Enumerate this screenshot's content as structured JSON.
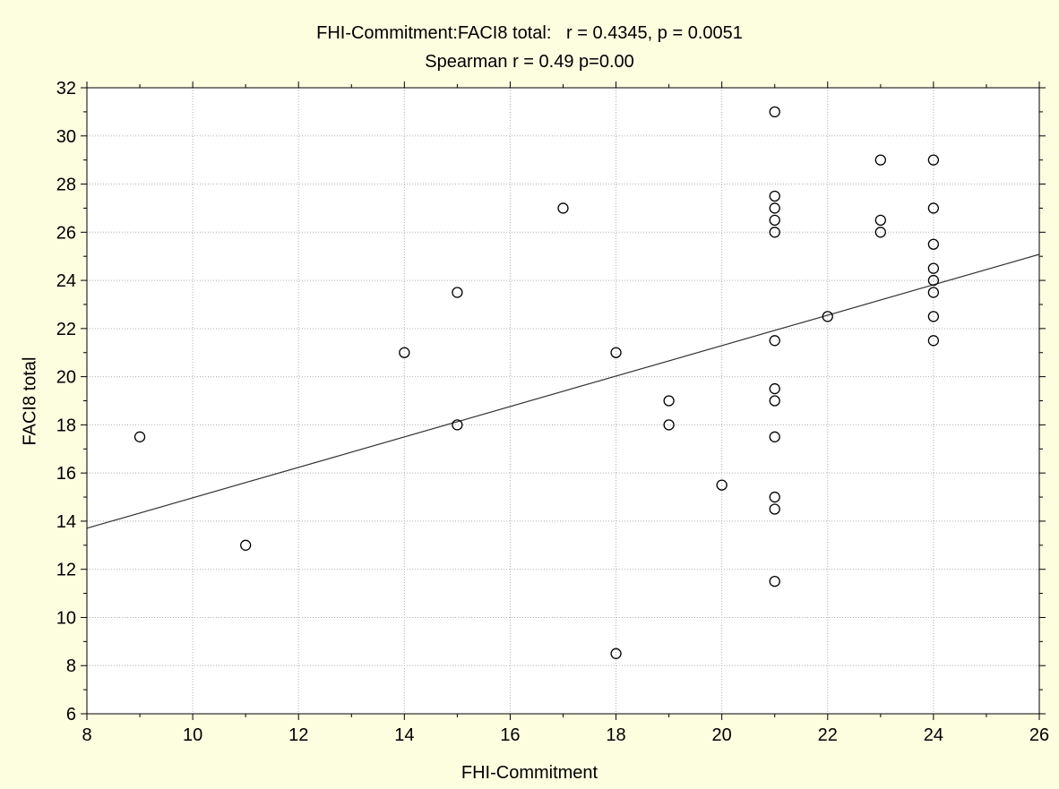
{
  "chart_data": {
    "type": "scatter",
    "title": "FHI-Commitment:FACI8 total:   r = 0.4345, p = 0.0051",
    "subtitle": "Spearman r = 0.49 p=0.00",
    "xlabel": "FHI-Commitment",
    "ylabel": "FACI8 total",
    "xlim": [
      8,
      26
    ],
    "ylim": [
      6,
      32
    ],
    "xticks": [
      8,
      10,
      12,
      14,
      16,
      18,
      20,
      22,
      24,
      26
    ],
    "yticks": [
      6,
      8,
      10,
      12,
      14,
      16,
      18,
      20,
      22,
      24,
      26,
      28,
      30,
      32
    ],
    "grid": true,
    "background_color": "#fdfde0",
    "plot_background_color": "#ffffff",
    "marker_color": "#000000",
    "line_color": "#333333",
    "regression_line": {
      "intercept": 8.65,
      "slope": 0.632
    },
    "points": [
      {
        "x": 9,
        "y": 17.5
      },
      {
        "x": 11,
        "y": 13
      },
      {
        "x": 14,
        "y": 21
      },
      {
        "x": 15,
        "y": 23.5
      },
      {
        "x": 15,
        "y": 18
      },
      {
        "x": 17,
        "y": 27
      },
      {
        "x": 18,
        "y": 21
      },
      {
        "x": 18,
        "y": 8.5
      },
      {
        "x": 19,
        "y": 19
      },
      {
        "x": 19,
        "y": 18
      },
      {
        "x": 20,
        "y": 15.5
      },
      {
        "x": 21,
        "y": 31
      },
      {
        "x": 21,
        "y": 27.5
      },
      {
        "x": 21,
        "y": 27
      },
      {
        "x": 21,
        "y": 26.5
      },
      {
        "x": 21,
        "y": 26
      },
      {
        "x": 21,
        "y": 21.5
      },
      {
        "x": 21,
        "y": 19.5
      },
      {
        "x": 21,
        "y": 19
      },
      {
        "x": 21,
        "y": 17.5
      },
      {
        "x": 21,
        "y": 15
      },
      {
        "x": 21,
        "y": 14.5
      },
      {
        "x": 21,
        "y": 11.5
      },
      {
        "x": 22,
        "y": 22.5
      },
      {
        "x": 23,
        "y": 29
      },
      {
        "x": 23,
        "y": 26.5
      },
      {
        "x": 23,
        "y": 26
      },
      {
        "x": 24,
        "y": 29
      },
      {
        "x": 24,
        "y": 27
      },
      {
        "x": 24,
        "y": 25.5
      },
      {
        "x": 24,
        "y": 24.5
      },
      {
        "x": 24,
        "y": 24
      },
      {
        "x": 24,
        "y": 23.5
      },
      {
        "x": 24,
        "y": 22.5
      },
      {
        "x": 24,
        "y": 21.5
      }
    ]
  }
}
